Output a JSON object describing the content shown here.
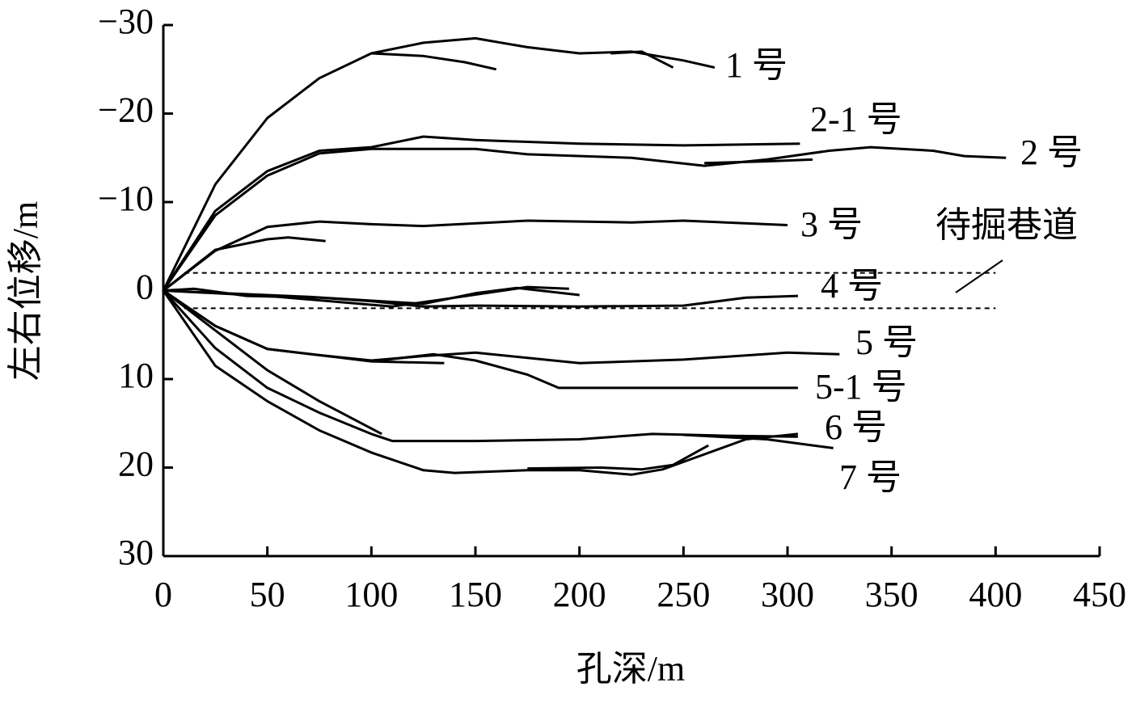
{
  "chart_data": {
    "type": "line",
    "xlabel": "孔深/m",
    "ylabel": "左右位移/m",
    "xlim": [
      0,
      450
    ],
    "xticks": [
      0,
      50,
      100,
      150,
      200,
      250,
      300,
      350,
      400,
      450
    ],
    "ylim": [
      -30,
      30
    ],
    "y_inverted": true,
    "yticks": [
      {
        "value": -30,
        "label": "−30"
      },
      {
        "value": -20,
        "label": "−20"
      },
      {
        "value": -10,
        "label": "−10"
      },
      0,
      10,
      20,
      30
    ],
    "color": "#000000",
    "series": [
      {
        "name": "1 号",
        "x": [
          0,
          25,
          50,
          75,
          100,
          125,
          150,
          175,
          200,
          225,
          250,
          265
        ],
        "values": [
          0,
          -12,
          -19.5,
          -24,
          -26.8,
          -28,
          -28.5,
          -27.5,
          -26.8,
          -27,
          -26,
          -25.2
        ]
      },
      {
        "name": "2-1 号",
        "x": [
          0,
          25,
          50,
          75,
          100,
          125,
          150,
          200,
          250,
          306
        ],
        "values": [
          0,
          -9,
          -13.5,
          -15.8,
          -16.2,
          -17.4,
          -17,
          -16.6,
          -16.4,
          -16.6
        ]
      },
      {
        "name": "2 号",
        "x": [
          0,
          25,
          50,
          75,
          100,
          150,
          175,
          225,
          260,
          290,
          320,
          340,
          370,
          385,
          405
        ],
        "values": [
          0,
          -8.5,
          -13,
          -15.5,
          -16,
          -16,
          -15.4,
          -15,
          -14.1,
          -14.8,
          -15.8,
          -16.2,
          -15.8,
          -15.2,
          -15
        ]
      },
      {
        "name": "3 号",
        "x": [
          0,
          25,
          50,
          75,
          100,
          125,
          175,
          225,
          250,
          300
        ],
        "values": [
          0,
          -4.5,
          -7.2,
          -7.8,
          -7.5,
          -7.3,
          -7.9,
          -7.7,
          -7.9,
          -7.4
        ]
      },
      {
        "name": "4 号",
        "x": [
          0,
          15,
          40,
          75,
          100,
          125,
          150,
          200,
          250,
          280,
          305
        ],
        "values": [
          0,
          -0.2,
          0.6,
          0.8,
          1.2,
          1.8,
          1.7,
          1.8,
          1.7,
          0.8,
          0.6
        ]
      },
      {
        "name": "5 号",
        "x": [
          0,
          25,
          50,
          75,
          100,
          125,
          150,
          200,
          250,
          300,
          325
        ],
        "values": [
          0,
          4,
          6.6,
          7.3,
          7.9,
          7.4,
          7,
          8.2,
          7.8,
          7,
          7.2
        ]
      },
      {
        "name": "5-1 号",
        "x": [
          0,
          25,
          50,
          75,
          100,
          130,
          150,
          175,
          190,
          250,
          305
        ],
        "values": [
          0,
          4,
          6.6,
          7.3,
          8,
          7.2,
          7.9,
          9.5,
          11,
          11,
          11
        ]
      },
      {
        "name": "6 号",
        "x": [
          0,
          25,
          50,
          75,
          100,
          110,
          150,
          200,
          235,
          270,
          305
        ],
        "values": [
          0,
          6.5,
          11,
          13.8,
          16.2,
          17,
          17,
          16.8,
          16.2,
          16.4,
          16.5
        ]
      },
      {
        "name": "7 号",
        "x": [
          0,
          25,
          50,
          75,
          100,
          125,
          140,
          175,
          200,
          225,
          240,
          260,
          280,
          305
        ],
        "values": [
          0,
          8.5,
          12.5,
          15.8,
          18.3,
          20.3,
          20.6,
          20.3,
          20.3,
          20.8,
          20.2,
          18.5,
          16.8,
          16.2
        ]
      },
      {
        "x": [
          100,
          125,
          145,
          160
        ],
        "values": [
          -26.8,
          -26.5,
          -25.8,
          -25
        ]
      },
      {
        "x": [
          215,
          230,
          245
        ],
        "values": [
          -26.8,
          -27,
          -25.2
        ]
      },
      {
        "x": [
          260,
          290,
          312
        ],
        "values": [
          -14.4,
          -14.6,
          -14.8
        ]
      },
      {
        "x": [
          0,
          25,
          50,
          60,
          78
        ],
        "values": [
          0,
          -4.6,
          -5.8,
          -6,
          -5.6
        ]
      },
      {
        "x": [
          0,
          50,
          110,
          140,
          175,
          195
        ],
        "values": [
          0,
          0.6,
          1.8,
          0.8,
          -0.4,
          -0.2
        ]
      },
      {
        "x": [
          0,
          70,
          125,
          150,
          170,
          200
        ],
        "values": [
          0,
          0.7,
          1.5,
          0.3,
          -0.3,
          0.5
        ]
      },
      {
        "x": [
          100,
          135
        ],
        "values": [
          8,
          8.2
        ]
      },
      {
        "x": [
          0,
          50,
          75,
          105
        ],
        "values": [
          0,
          9,
          12.5,
          16.2
        ]
      },
      {
        "x": [
          250,
          290,
          322
        ],
        "values": [
          16.3,
          16.8,
          17.8
        ]
      },
      {
        "x": [
          175,
          210,
          230,
          245,
          262
        ],
        "values": [
          20.1,
          20,
          20.2,
          19.7,
          17.5
        ]
      }
    ],
    "hlines": [
      -2,
      2
    ],
    "hline_x": [
      10,
      400
    ],
    "annotation": "待掘巷道"
  }
}
